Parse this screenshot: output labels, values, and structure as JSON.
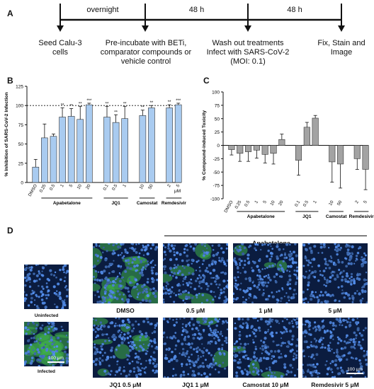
{
  "panels": {
    "a": {
      "letter": "A",
      "interval_labels": [
        "overnight",
        "48 h",
        "48 h"
      ],
      "steps": [
        {
          "text": "Seed Calu-3 cells"
        },
        {
          "text": "Pre-incubate with BETi, comparator compounds or vehicle control"
        },
        {
          "text": "Wash out treatments Infect with SARS-CoV-2 (MOI: 0.1)"
        },
        {
          "text": "Fix, Stain and Image"
        }
      ]
    },
    "b": {
      "letter": "B"
    },
    "c": {
      "letter": "C"
    },
    "d": {
      "letter": "D",
      "group_label": "Apabetalone",
      "scale_bar_label": "100 μm",
      "small_images": [
        {
          "label": "Uninfected",
          "infection": 0.0
        },
        {
          "label": "Infected",
          "infection": 0.9
        }
      ],
      "grid_images": [
        {
          "label": "DMSO",
          "infection": 0.7
        },
        {
          "label": "0.5 μM",
          "infection": 0.25
        },
        {
          "label": "1 μM",
          "infection": 0.15
        },
        {
          "label": "5 μM",
          "infection": 0.02
        },
        {
          "label": "JQ1  0.5 μM",
          "infection": 0.3
        },
        {
          "label": "JQ1  1 μM",
          "infection": 0.1
        },
        {
          "label": "Camostat 10 μM",
          "infection": 0.12
        },
        {
          "label": "Remdesivir 5 μM",
          "infection": 0.01
        }
      ]
    }
  },
  "chart_data": [
    {
      "type": "bar",
      "ylabel": "% Inhibition of SARS-CoV-2 Infection",
      "ylim": [
        0,
        125
      ],
      "yticks": [
        0,
        25,
        50,
        75,
        100,
        125
      ],
      "reference_line": 100,
      "unit_label": "μM",
      "color": "#a9cbf0",
      "categories": [
        "DMSO",
        "0.25",
        "0.5",
        "1",
        "5",
        "10",
        "20",
        "0.1",
        "0.5",
        "1",
        "10",
        "50",
        "2",
        "5"
      ],
      "values": [
        20,
        58,
        60,
        85,
        86,
        82,
        101,
        85,
        78,
        83,
        87,
        97,
        97,
        101
      ],
      "errors": [
        10,
        18,
        3,
        12,
        10,
        17,
        2,
        14,
        10,
        16,
        7,
        3,
        4,
        2
      ],
      "significance": [
        "",
        "",
        "",
        "**",
        "**",
        "**",
        "***",
        "**",
        "**",
        "**",
        "**",
        "**",
        "**",
        "***"
      ],
      "groups": [
        {
          "label": "Apabetalone",
          "from": 1,
          "to": 6
        },
        {
          "label": "JQ1",
          "from": 7,
          "to": 9
        },
        {
          "label": "Camostat",
          "from": 10,
          "to": 11
        },
        {
          "label": "Remdesivir",
          "from": 12,
          "to": 13
        }
      ]
    },
    {
      "type": "bar",
      "ylabel": "% Compound-induced Toxicity",
      "ylim": [
        -100,
        100
      ],
      "yticks": [
        -100,
        -75,
        -50,
        -25,
        0,
        25,
        50,
        75,
        100
      ],
      "color": "#a3a3a3",
      "categories": [
        "DMSO",
        "0.25",
        "0.5",
        "1",
        "5",
        "10",
        "20",
        "0.1",
        "0.5",
        "1",
        "10",
        "50",
        "2",
        "5"
      ],
      "values": [
        -8,
        -15,
        -12,
        -9,
        -17,
        -15,
        11,
        -28,
        34,
        51,
        -31,
        -35,
        -25,
        -45
      ],
      "errors": [
        10,
        15,
        18,
        15,
        16,
        20,
        10,
        28,
        9,
        5,
        38,
        45,
        20,
        38
      ],
      "groups": [
        {
          "label": "Apabetalone",
          "from": 1,
          "to": 6
        },
        {
          "label": "JQ1",
          "from": 7,
          "to": 9
        },
        {
          "label": "Camostat",
          "from": 10,
          "to": 11
        },
        {
          "label": "Remdesivir",
          "from": 12,
          "to": 13
        }
      ]
    }
  ]
}
